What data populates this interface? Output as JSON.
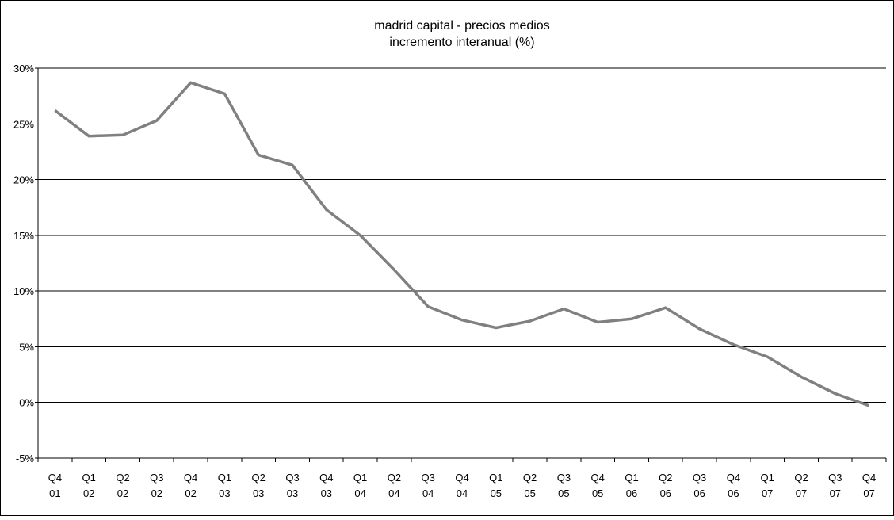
{
  "chart_data": {
    "type": "line",
    "title": [
      "madrid capital - precios medios",
      "incremento interanual (%)"
    ],
    "xlabel": "",
    "ylabel": "",
    "categories": [
      [
        "Q4",
        "01"
      ],
      [
        "Q1",
        "02"
      ],
      [
        "Q2",
        "02"
      ],
      [
        "Q3",
        "02"
      ],
      [
        "Q4",
        "02"
      ],
      [
        "Q1",
        "03"
      ],
      [
        "Q2",
        "03"
      ],
      [
        "Q3",
        "03"
      ],
      [
        "Q4",
        "03"
      ],
      [
        "Q1",
        "04"
      ],
      [
        "Q2",
        "04"
      ],
      [
        "Q3",
        "04"
      ],
      [
        "Q4",
        "04"
      ],
      [
        "Q1",
        "05"
      ],
      [
        "Q2",
        "05"
      ],
      [
        "Q3",
        "05"
      ],
      [
        "Q4",
        "05"
      ],
      [
        "Q1",
        "06"
      ],
      [
        "Q2",
        "06"
      ],
      [
        "Q3",
        "06"
      ],
      [
        "Q4",
        "06"
      ],
      [
        "Q1",
        "07"
      ],
      [
        "Q2",
        "07"
      ],
      [
        "Q3",
        "07"
      ],
      [
        "Q4",
        "07"
      ]
    ],
    "series": [
      {
        "values": [
          26.2,
          23.9,
          24.0,
          25.3,
          28.7,
          27.7,
          22.2,
          21.3,
          17.3,
          15.0,
          11.9,
          8.6,
          7.4,
          6.7,
          7.3,
          8.4,
          7.2,
          7.5,
          8.5,
          6.6,
          5.2,
          4.1,
          2.3,
          0.8,
          -0.3
        ],
        "color": "#808080"
      }
    ],
    "ylim": [
      -5,
      30
    ],
    "yticks": [
      -5,
      0,
      5,
      10,
      15,
      20,
      25,
      30
    ],
    "ytick_labels": [
      "-5%",
      "0%",
      "5%",
      "10%",
      "15%",
      "20%",
      "25%",
      "30%"
    ],
    "grid": true,
    "legend": "none",
    "colors": {
      "line": "#808080",
      "grid": "#000000",
      "axis": "#000000"
    }
  }
}
